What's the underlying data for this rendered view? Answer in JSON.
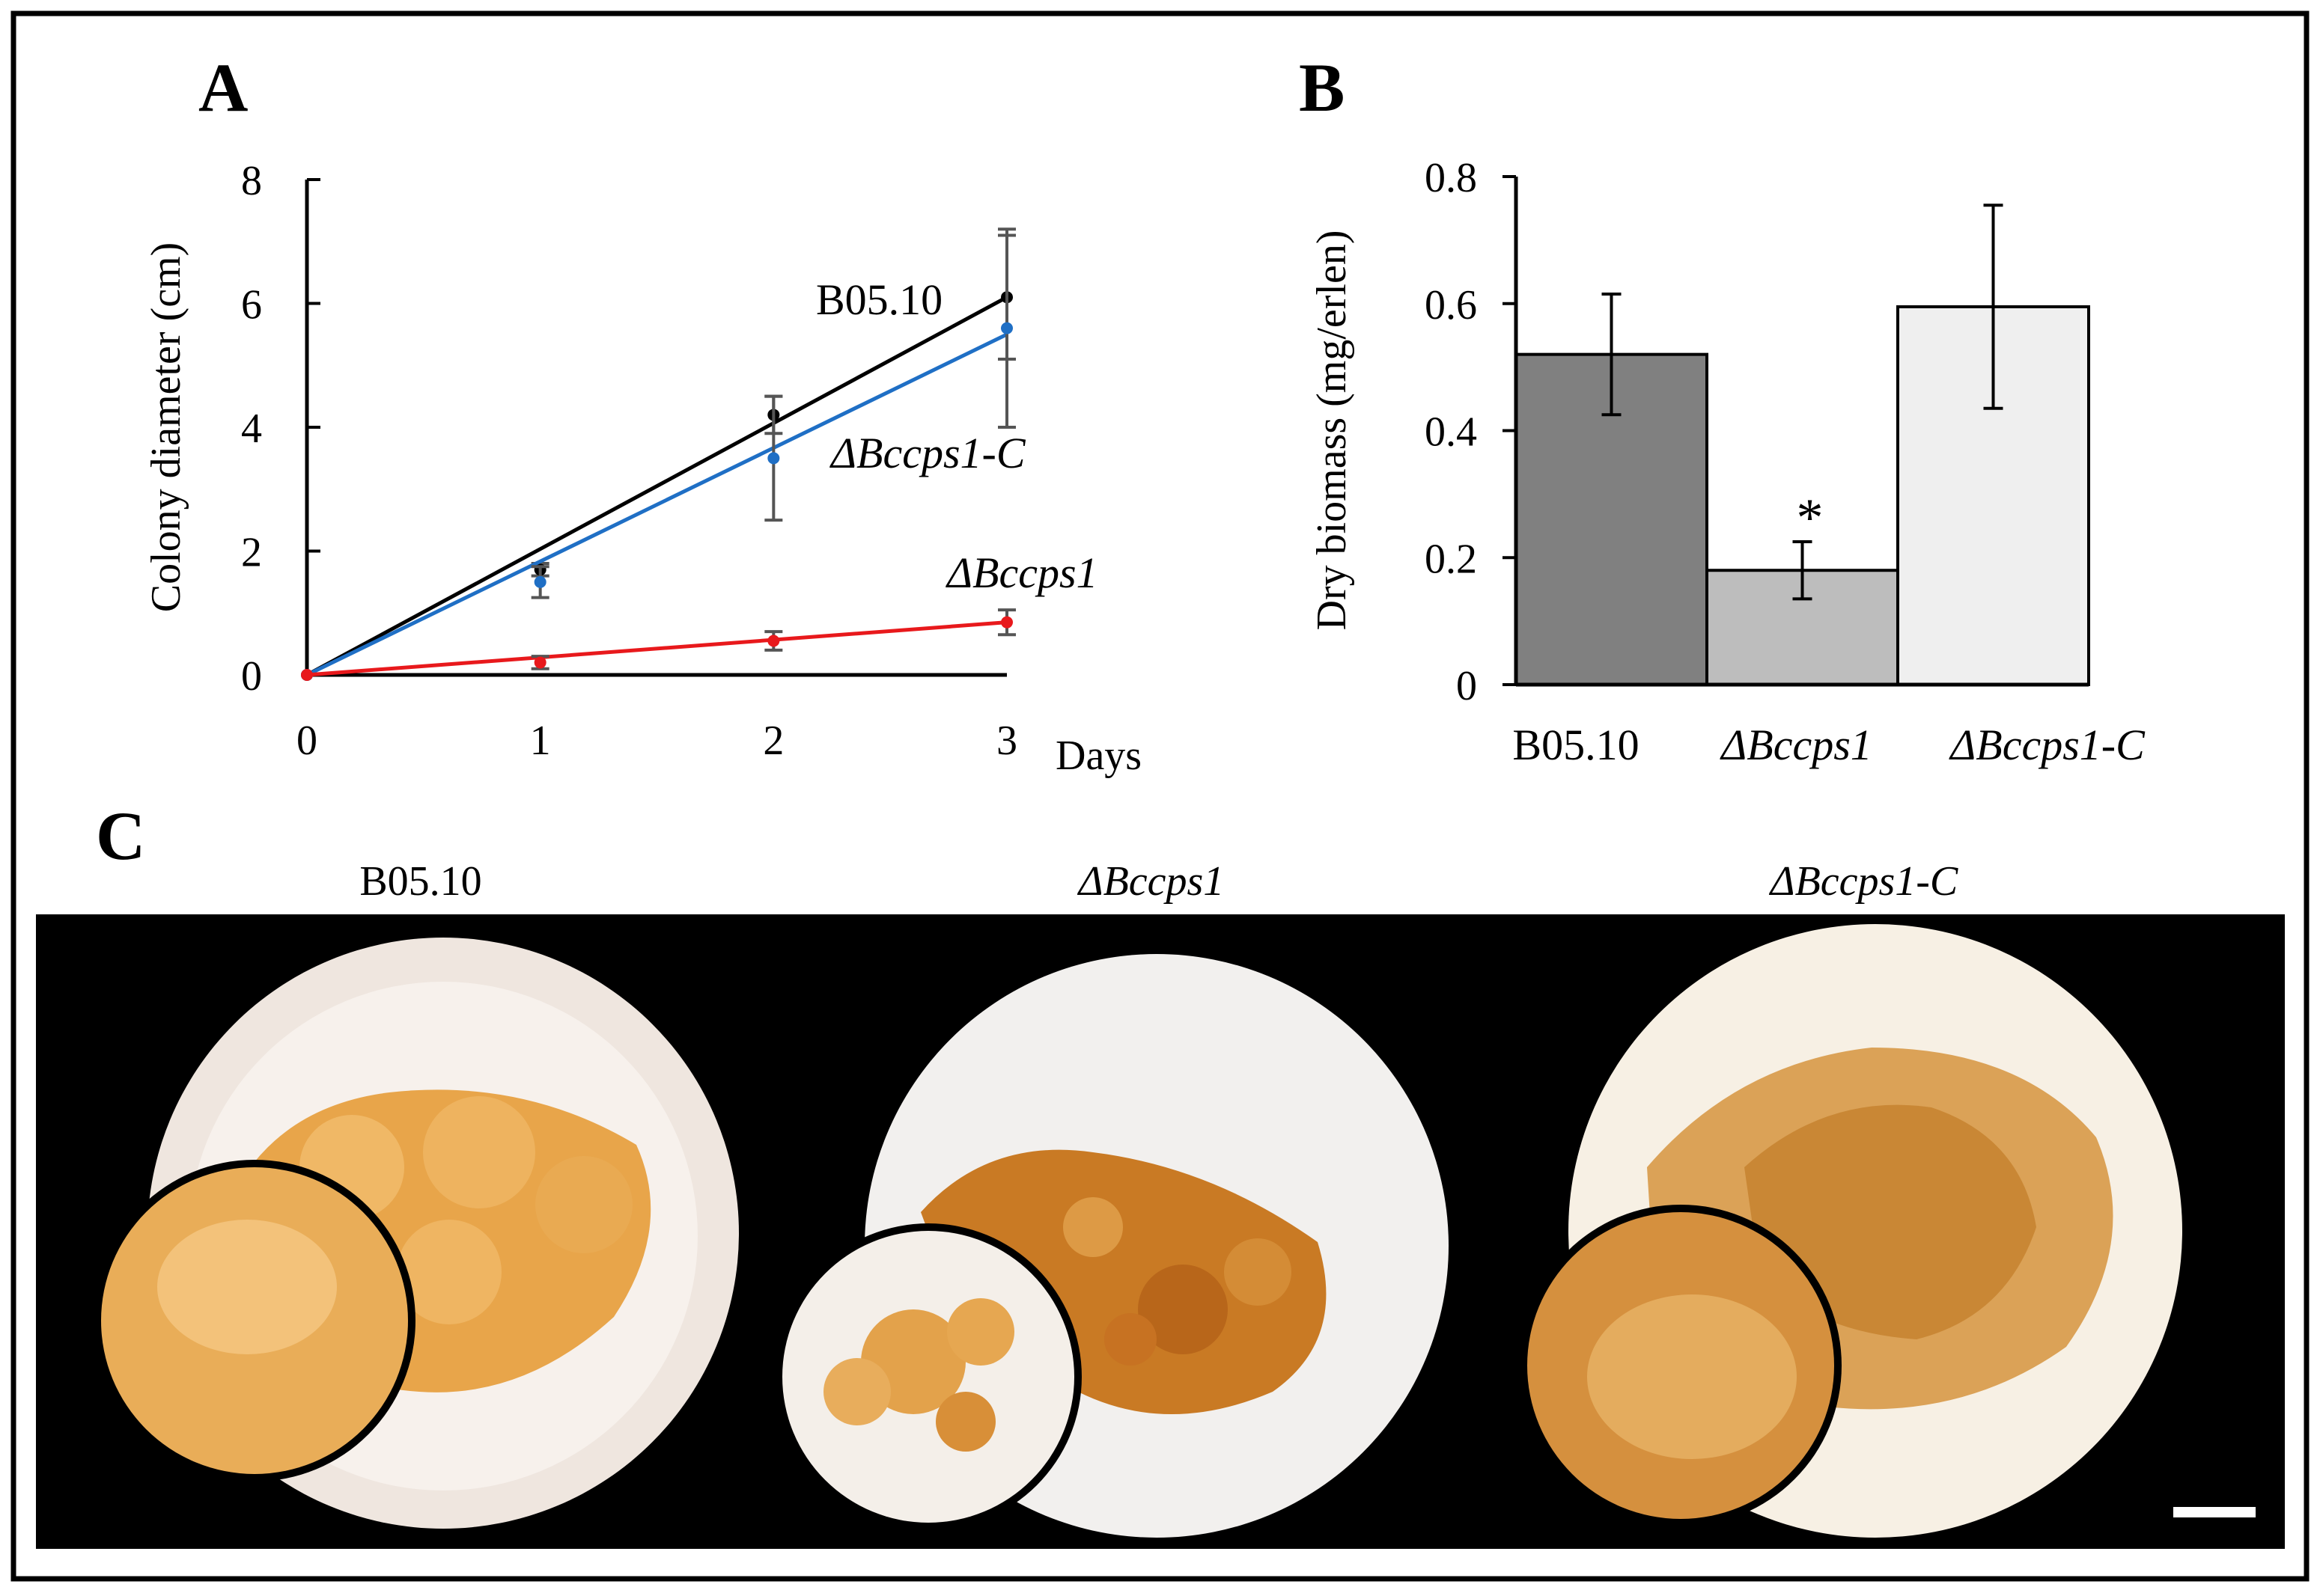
{
  "panels": {
    "a": {
      "label": "A"
    },
    "b": {
      "label": "B"
    },
    "c": {
      "label": "C",
      "photo_captions": [
        "B05.10",
        "ΔBccps1",
        "ΔBccps1-C"
      ],
      "scale_bar": "scale-bar",
      "colors": {
        "background": "#000000",
        "dish": "#f2ede8",
        "paper": "#f6efe6",
        "mycelium_light": "#eab45c",
        "mycelium_dark": "#c8761e",
        "hole": "#6b6b6b"
      }
    }
  },
  "chart_data": [
    {
      "type": "line",
      "ylabel": "Colony diameter (cm)",
      "xlabel": "Days",
      "x": [
        0,
        1,
        2,
        3
      ],
      "xticks": [
        "0",
        "1",
        "2",
        "3"
      ],
      "ylim": [
        0,
        8
      ],
      "yticks": [
        "0",
        "2",
        "4",
        "6",
        "8"
      ],
      "series": [
        {
          "name": "B05.10",
          "color": "#000000",
          "values": [
            0,
            1.7,
            4.2,
            6.1
          ],
          "errors": [
            0,
            0.1,
            0.3,
            1.0
          ],
          "trend": [
            0,
            6.1
          ]
        },
        {
          "name": "ΔBccps1-C",
          "color": "#1f6fc5",
          "values": [
            0,
            1.5,
            3.5,
            5.6
          ],
          "errors": [
            0,
            0.25,
            1.0,
            1.6
          ],
          "trend": [
            0,
            5.5
          ]
        },
        {
          "name": "ΔBccps1",
          "color": "#e8191c",
          "values": [
            0,
            0.2,
            0.55,
            0.85
          ],
          "errors": [
            0,
            0.1,
            0.15,
            0.2
          ],
          "trend": [
            0,
            0.85
          ]
        }
      ]
    },
    {
      "type": "bar",
      "ylabel": "Dry biomass (mg/erlen)",
      "categories": [
        "B05.10",
        "ΔBccps1",
        "ΔBccps1-C"
      ],
      "values": [
        0.52,
        0.18,
        0.595
      ],
      "errors": [
        0.095,
        0.045,
        0.16
      ],
      "colors": [
        "#808080",
        "#bdbdbd",
        "#efefef"
      ],
      "annotations": [
        "",
        "*",
        ""
      ],
      "ylim": [
        0,
        0.8
      ],
      "yticks": [
        "0",
        "0.2",
        "0.4",
        "0.6",
        "0.8"
      ]
    }
  ]
}
